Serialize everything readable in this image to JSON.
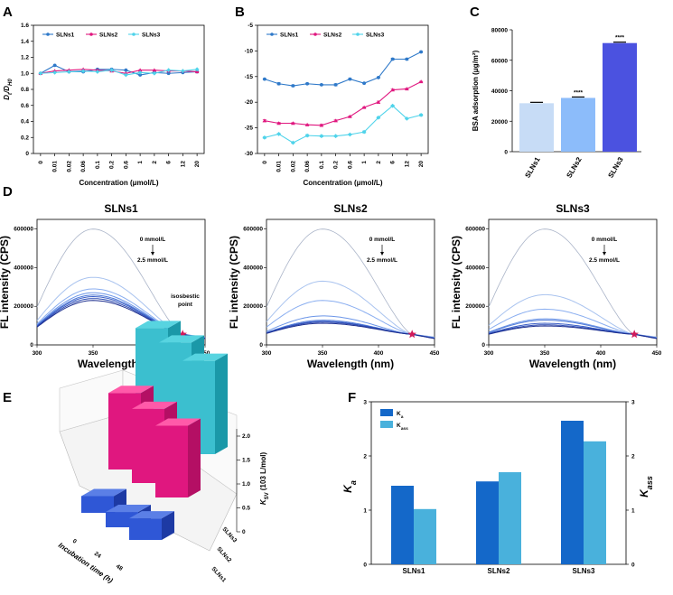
{
  "panels": {
    "a": "A",
    "b": "B",
    "c": "C",
    "d": "D",
    "e": "E",
    "f": "F"
  },
  "colors": {
    "s1": "#2f79c9",
    "s2": "#e0177f",
    "s3": "#4fd3ea",
    "c1": "#c7dcf6",
    "c2": "#8cbcfa",
    "c3": "#4b52e0",
    "f1": "#1468c9",
    "f2": "#49b1dc"
  },
  "chart_data": [
    {
      "id": "A",
      "type": "line",
      "categories": [
        "0",
        "0.01",
        "0.02",
        "0.06",
        "0.1",
        "0.2",
        "0.6",
        "1",
        "2",
        "6",
        "12",
        "20"
      ],
      "ylabel": "D_t/D_H0",
      "xlabel": "Concentration (μmol/L)",
      "ylim": [
        0,
        1.6
      ],
      "yticks": [
        "0",
        "0.2",
        "0.4",
        "0.6",
        "0.8",
        "1.0",
        "1.2",
        "1.4",
        "1.6"
      ],
      "series": [
        {
          "name": "SLNs1",
          "values": [
            1.0,
            1.1,
            1.02,
            1.02,
            1.05,
            1.05,
            1.04,
            0.98,
            1.01,
            1.0,
            1.01,
            1.02
          ]
        },
        {
          "name": "SLNs2",
          "values": [
            1.0,
            1.03,
            1.04,
            1.05,
            1.04,
            1.03,
            1.0,
            1.04,
            1.04,
            1.03,
            1.03,
            1.02
          ]
        },
        {
          "name": "SLNs3",
          "values": [
            1.0,
            1.01,
            1.02,
            1.03,
            1.02,
            1.04,
            0.98,
            1.01,
            1.0,
            1.04,
            1.03,
            1.05
          ]
        }
      ]
    },
    {
      "id": "B",
      "type": "line",
      "categories": [
        "0",
        "0.01",
        "0.02",
        "0.06",
        "0.1",
        "0.2",
        "0.6",
        "1",
        "2",
        "6",
        "12",
        "20"
      ],
      "xlabel": "Concentration (μmol/L)",
      "ylim": [
        -30,
        -5
      ],
      "yticks": [
        "-5",
        "-10",
        "-15",
        "-20",
        "-25",
        "-30"
      ],
      "series": [
        {
          "name": "SLNs1",
          "values": [
            -15.5,
            -16.4,
            -16.8,
            -16.4,
            -16.6,
            -16.6,
            -15.5,
            -16.3,
            -15.2,
            -11.6,
            -11.6,
            -10.2
          ]
        },
        {
          "name": "SLNs2",
          "values": [
            -23.6,
            -24.1,
            -24.1,
            -24.4,
            -24.5,
            -23.6,
            -22.8,
            -21.0,
            -20.0,
            -17.6,
            -17.4,
            -16.0
          ]
        },
        {
          "name": "SLNs3",
          "values": [
            -26.9,
            -26.2,
            -27.9,
            -26.5,
            -26.6,
            -26.6,
            -26.3,
            -25.8,
            -23.0,
            -20.7,
            -23.2,
            -22.5
          ]
        }
      ]
    },
    {
      "id": "C",
      "type": "bar",
      "categories": [
        "SLNs1",
        "SLNs2",
        "SLNs3"
      ],
      "values": [
        31800,
        35300,
        71300
      ],
      "ylabel": "BSA adsorption (μg/m²)",
      "ylim": [
        0,
        80000
      ],
      "yticks": [
        "0",
        "20000",
        "40000",
        "60000",
        "80000"
      ],
      "annotations": [
        "",
        "****",
        "****"
      ]
    },
    {
      "id": "D",
      "type": "line",
      "titles": [
        "SLNs1",
        "SLNs2",
        "SLNs3"
      ],
      "xlabel": "Wavelength (nm)",
      "ylabel": "FL intensity (CPS)",
      "xticks": [
        "300",
        "350",
        "400",
        "450"
      ],
      "yticks": [
        "0",
        "200000",
        "400000",
        "600000"
      ],
      "arrow_top": "0 mmol/L",
      "arrow_bottom": "2.5 mmol/L",
      "isosbestic_label": [
        "isosbestic",
        "point"
      ],
      "peaks": [
        [
          600000,
          350000,
          290000,
          270000,
          258000,
          250000,
          240000,
          230000
        ],
        [
          600000,
          330000,
          230000,
          150000,
          128000,
          122000,
          118000,
          112000
        ],
        [
          600000,
          260000,
          185000,
          135000,
          128000,
          112000,
          104000,
          98000
        ]
      ]
    },
    {
      "id": "E",
      "type": "bar3d",
      "zlabel": "K_SV (10³ L/mol)",
      "ylabel": "Incubation time (h)",
      "zticks": [
        "0",
        "0.5",
        "1.0",
        "1.5",
        "2.0"
      ],
      "times": [
        "0",
        "24",
        "48"
      ],
      "groups": [
        "SLNs1",
        "SLNs2",
        "SLNs3"
      ],
      "values": [
        [
          0.35,
          0.32,
          0.45
        ],
        [
          1.6,
          1.55,
          1.5
        ],
        [
          2.05,
          2.05,
          1.95
        ]
      ]
    },
    {
      "id": "F",
      "type": "bar",
      "categories": [
        "SLNs1",
        "SLNs2",
        "SLNs3"
      ],
      "series": [
        {
          "name": "K_a",
          "values": [
            1.45,
            1.53,
            2.65
          ]
        },
        {
          "name": "K_ass",
          "values": [
            1.02,
            1.7,
            2.27
          ]
        }
      ],
      "ylabel": "K_a",
      "y2label": "K_ass",
      "ylim": [
        0,
        3
      ],
      "yticks": [
        "0",
        "1",
        "2",
        "3"
      ]
    }
  ]
}
